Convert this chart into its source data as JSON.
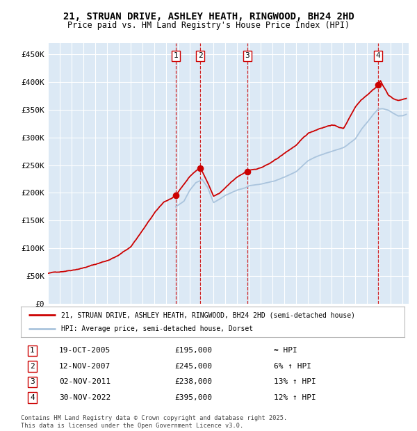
{
  "title": "21, STRUAN DRIVE, ASHLEY HEATH, RINGWOOD, BH24 2HD",
  "subtitle": "Price paid vs. HM Land Registry's House Price Index (HPI)",
  "legend_line1": "21, STRUAN DRIVE, ASHLEY HEATH, RINGWOOD, BH24 2HD (semi-detached house)",
  "legend_line2": "HPI: Average price, semi-detached house, Dorset",
  "transactions": [
    {
      "num": 1,
      "date": "19-OCT-2005",
      "price": 195000,
      "hpi": "≈ HPI",
      "year": 2005.8
    },
    {
      "num": 2,
      "date": "12-NOV-2007",
      "price": 245000,
      "hpi": "6% ↑ HPI",
      "year": 2007.87
    },
    {
      "num": 3,
      "date": "02-NOV-2011",
      "price": 238000,
      "hpi": "13% ↑ HPI",
      "year": 2011.85
    },
    {
      "num": 4,
      "date": "30-NOV-2022",
      "price": 395000,
      "hpi": "12% ↑ HPI",
      "year": 2022.92
    }
  ],
  "footer": "Contains HM Land Registry data © Crown copyright and database right 2025.\nThis data is licensed under the Open Government Licence v3.0.",
  "red_color": "#cc0000",
  "blue_color": "#aac4dd",
  "bg_color": "#dce9f5",
  "grid_color": "#ffffff",
  "ylim": [
    0,
    470000
  ],
  "yticks": [
    0,
    50000,
    100000,
    150000,
    200000,
    250000,
    300000,
    350000,
    400000,
    450000
  ],
  "ytick_labels": [
    "£0",
    "£50K",
    "£100K",
    "£150K",
    "£200K",
    "£250K",
    "£300K",
    "£350K",
    "£400K",
    "£450K"
  ],
  "xmin": 1995.0,
  "xmax": 2025.5
}
